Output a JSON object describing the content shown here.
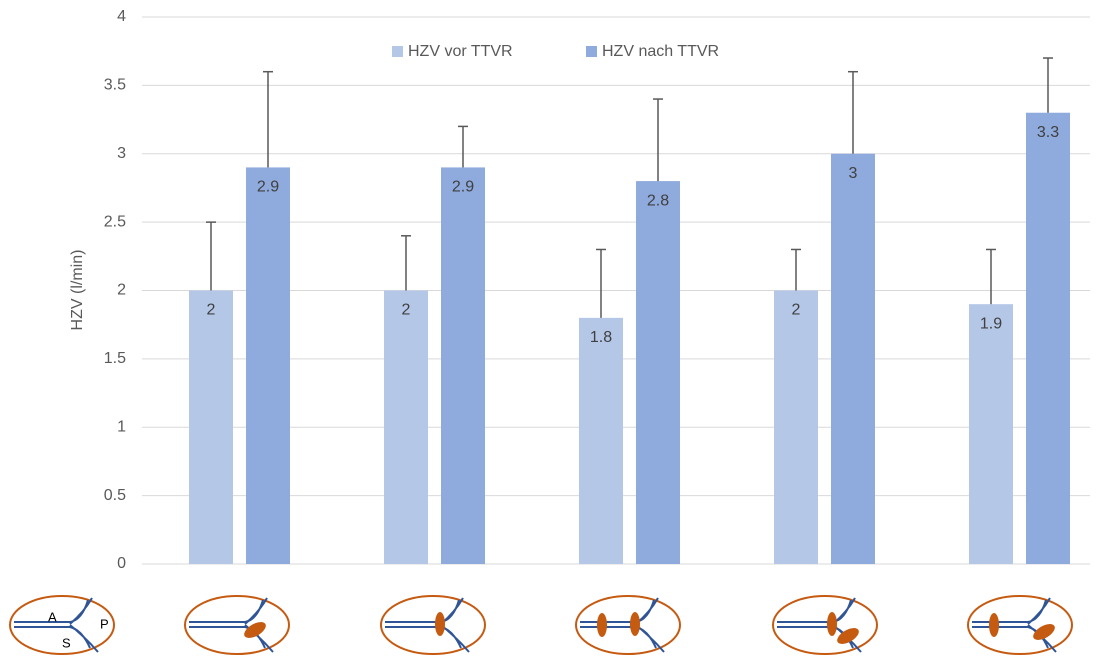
{
  "chart_data": {
    "type": "bar",
    "y_label": "HZV (l/min)",
    "categories": [
      null,
      null,
      null,
      null,
      null
    ],
    "series": [
      {
        "name": "HZV vor TTVR",
        "color": "#b4c7e7",
        "values": [
          2,
          2,
          1.8,
          2,
          1.9
        ],
        "errors": [
          0.5,
          0.4,
          0.5,
          0.3,
          0.4
        ]
      },
      {
        "name": "HZV nach TTVR",
        "color": "#8faadc",
        "values": [
          2.9,
          2.9,
          2.8,
          3,
          3.3
        ],
        "errors": [
          0.7,
          0.3,
          0.6,
          0.6,
          0.4
        ]
      }
    ],
    "ylim": [
      0,
      4
    ],
    "yticks": [
      0,
      0.5,
      1,
      1.5,
      2,
      2.5,
      3,
      3.5,
      4
    ],
    "grid": true,
    "legend": "top"
  },
  "icon_labels": [
    "A",
    "S",
    "P"
  ]
}
